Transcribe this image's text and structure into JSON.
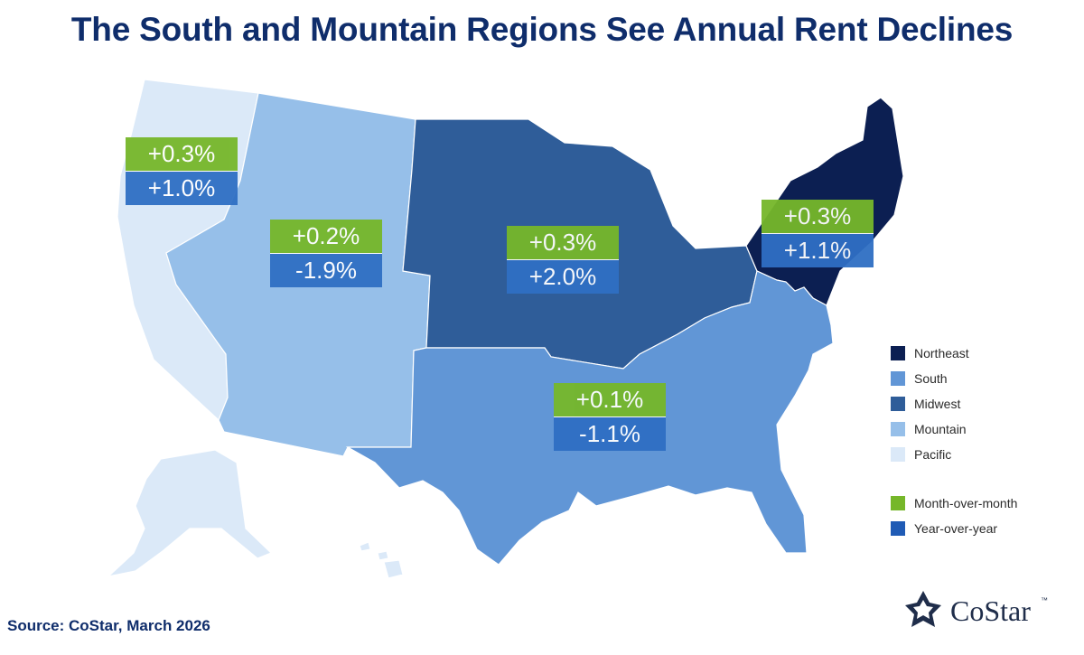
{
  "title": "The South and Mountain Regions See Annual Rent Declines",
  "source": "Source: CoStar, March 2026",
  "logo_text": "CoStar",
  "logo_tm": "™",
  "colors": {
    "northeast": "#0c1f52",
    "south": "#6196d6",
    "midwest": "#2f5d99",
    "mountain": "#96bfe9",
    "pacific": "#dbe9f8",
    "month_over_month": "#76b72a",
    "year_over_year": "#1f5bb5"
  },
  "regions": {
    "pacific": {
      "mom": "+0.3%",
      "yoy": "+1.0%"
    },
    "mountain": {
      "mom": "+0.2%",
      "yoy": "-1.9%"
    },
    "midwest": {
      "mom": "+0.3%",
      "yoy": "+2.0%"
    },
    "northeast": {
      "mom": "+0.3%",
      "yoy": "+1.1%"
    },
    "south": {
      "mom": "+0.1%",
      "yoy": "-1.1%"
    }
  },
  "legend": {
    "regions": [
      "Northeast",
      "South",
      "Midwest",
      "Mountain",
      "Pacific"
    ],
    "metrics": [
      "Month-over-month",
      "Year-over-year"
    ]
  }
}
